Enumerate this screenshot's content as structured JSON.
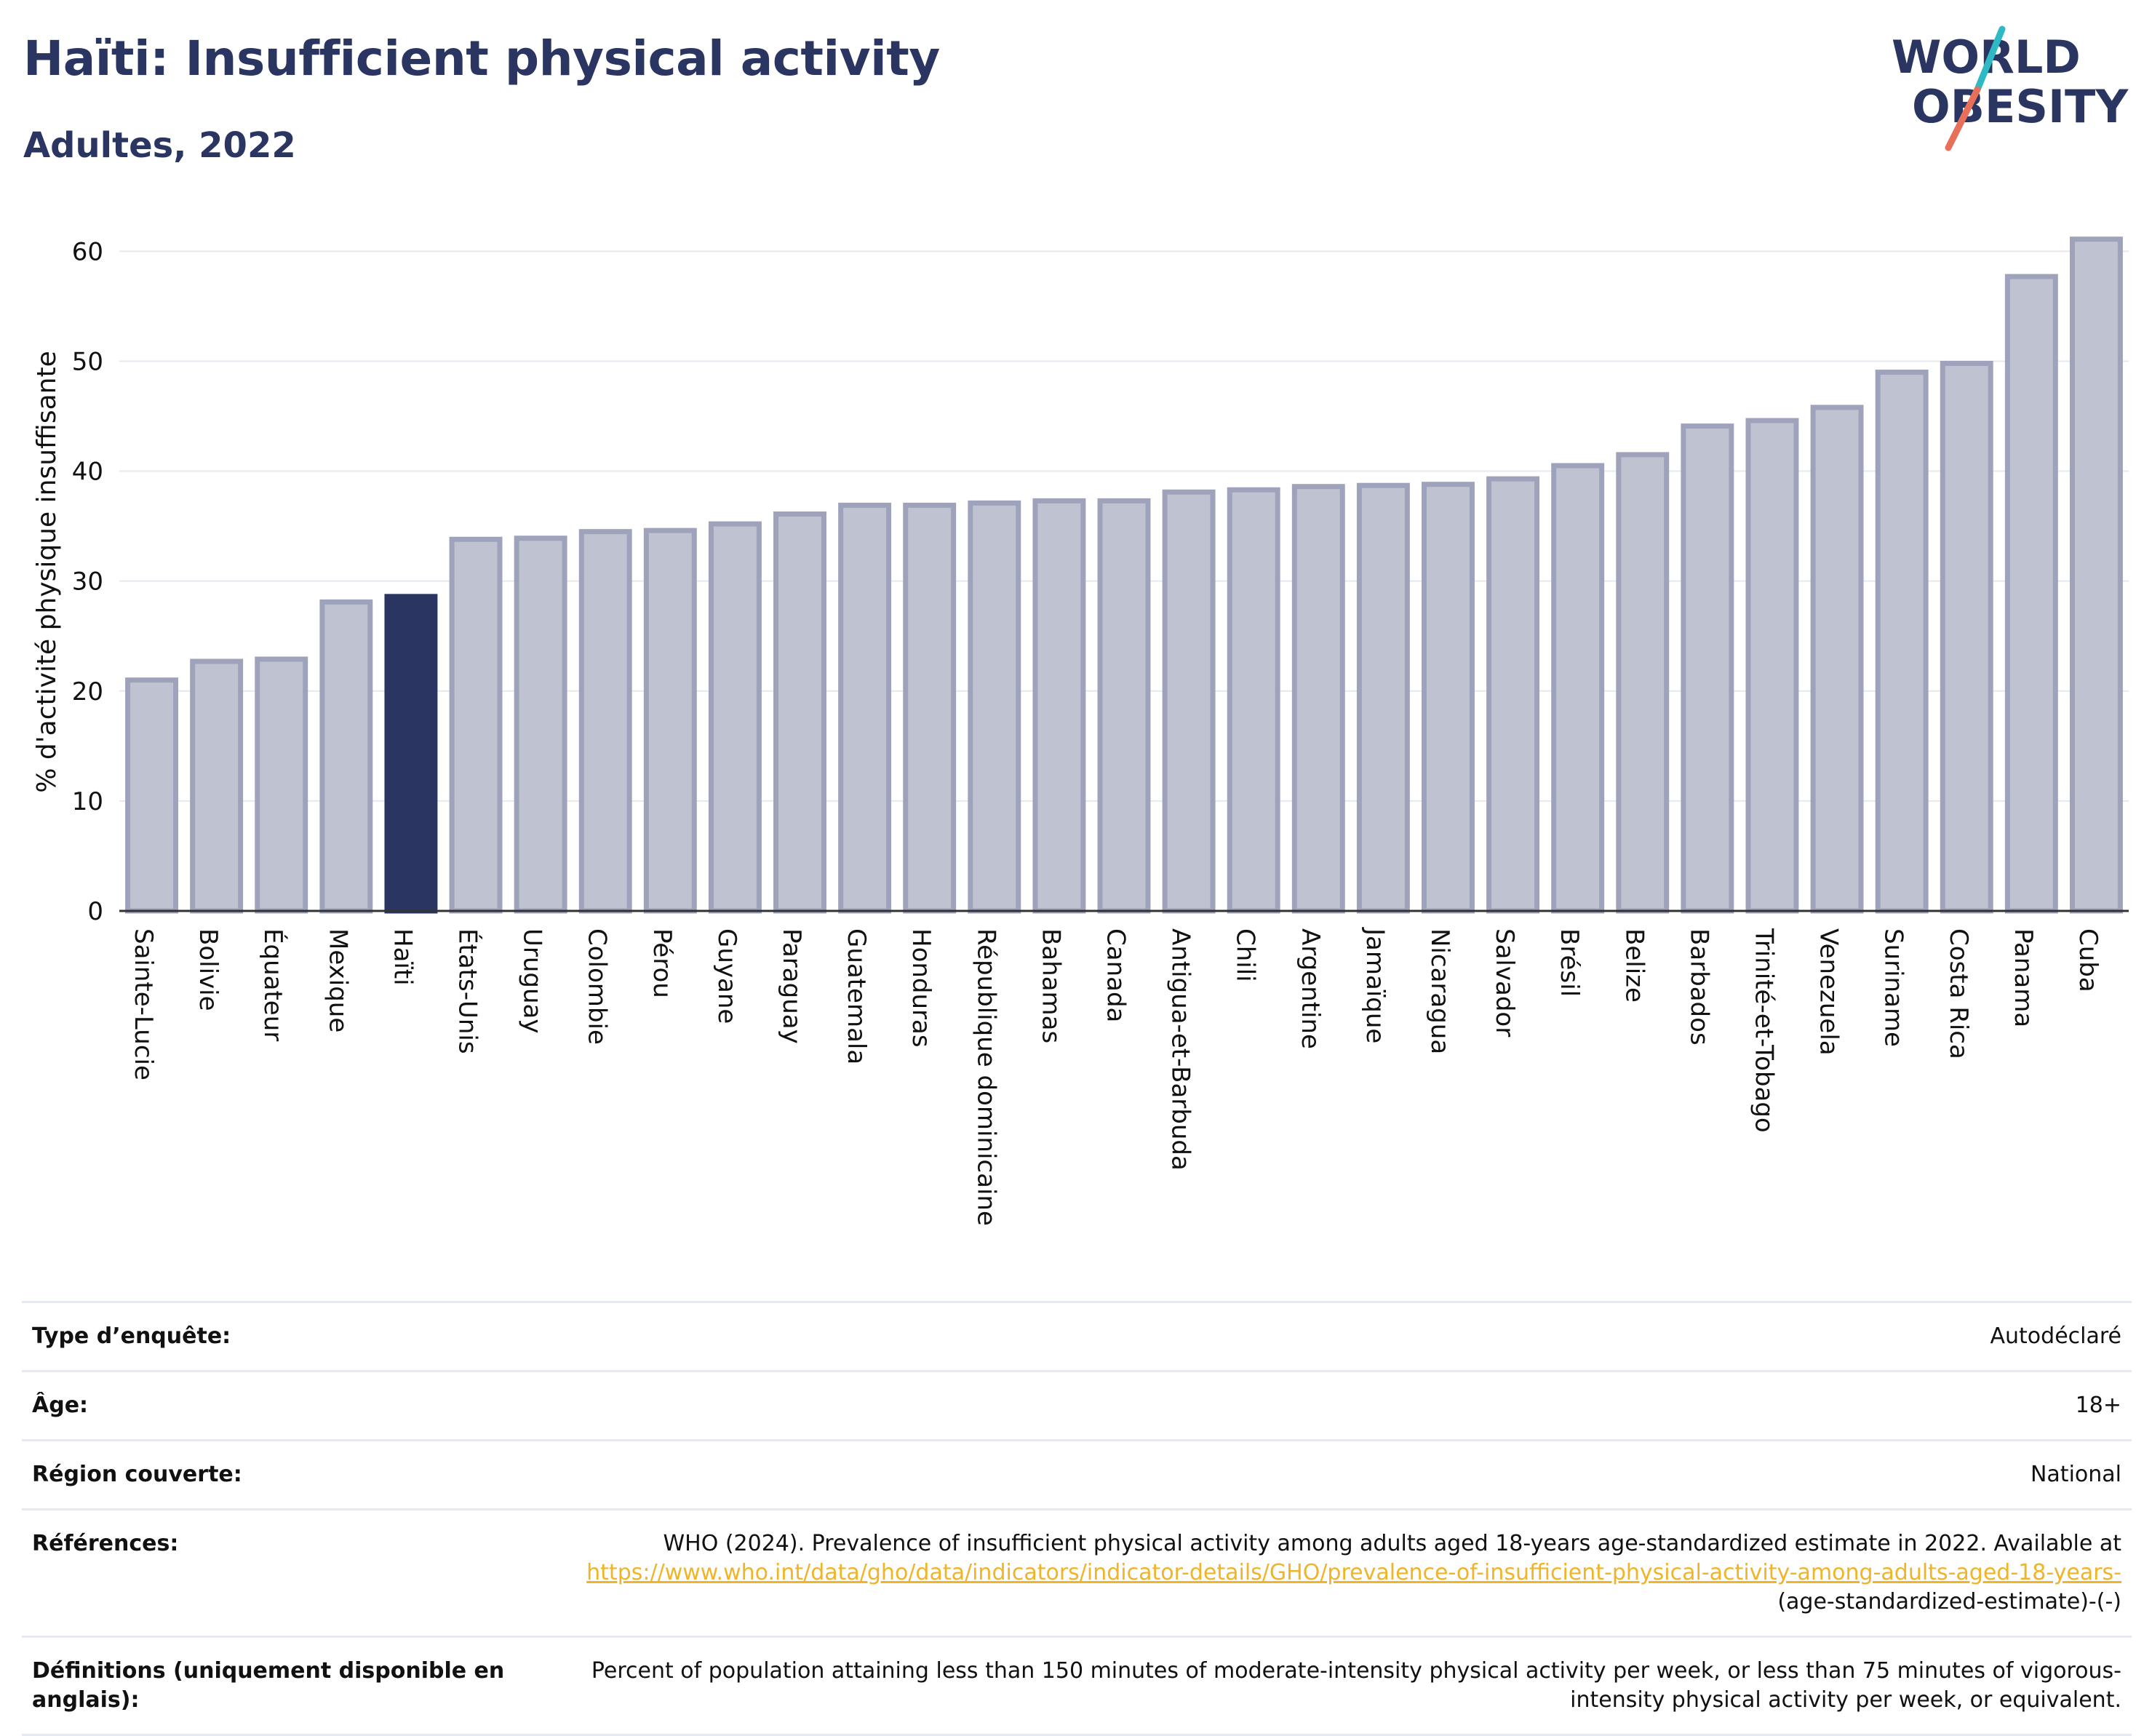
{
  "header": {
    "title": "Haïti: Insufficient physical activity",
    "subtitle": "Adultes, 2022"
  },
  "logo": {
    "line1": "WORLD",
    "line2": "OBESITY",
    "text_color": "#2a3561",
    "slash_colors": [
      "#2fb9c4",
      "#e8705a"
    ]
  },
  "colors": {
    "bar": "#bfc2d0",
    "bar_edge": "#9ea3bb",
    "highlight": "#2a3561",
    "grid": "#e6e8ef",
    "axis": "#333333"
  },
  "chart_data": {
    "type": "bar",
    "ylabel": "% d'activité physique insuffisante",
    "ylim": [
      0,
      63
    ],
    "yticks": [
      0,
      10,
      20,
      30,
      40,
      50,
      60
    ],
    "grid": true,
    "highlight": "Haïti",
    "categories": [
      "Sainte-Lucie",
      "Bolivie",
      "Équateur",
      "Mexique",
      "Haïti",
      "États-Unis",
      "Uruguay",
      "Colombie",
      "Pérou",
      "Guyane",
      "Paraguay",
      "Guatemala",
      "Honduras",
      "République dominicaine",
      "Bahamas",
      "Canada",
      "Antigua-et-Barbuda",
      "Chili",
      "Argentine",
      "Jamaïque",
      "Nicaragua",
      "Salvador",
      "Brésil",
      "Belize",
      "Barbados",
      "Trinité-et-Tobago",
      "Venezuela",
      "Suriname",
      "Costa Rica",
      "Panama",
      "Cuba"
    ],
    "values": [
      21.0,
      22.7,
      22.9,
      28.1,
      28.6,
      33.8,
      33.9,
      34.5,
      34.6,
      35.2,
      36.1,
      36.9,
      36.9,
      37.1,
      37.3,
      37.3,
      38.1,
      38.3,
      38.6,
      38.7,
      38.8,
      39.3,
      40.5,
      41.5,
      44.1,
      44.6,
      45.8,
      49.0,
      49.8,
      57.7,
      61.1
    ]
  },
  "info": [
    {
      "label": "Type d’enquête:",
      "value": "Autodéclaré"
    },
    {
      "label": "Âge:",
      "value": "18+"
    },
    {
      "label": "Région couverte:",
      "value": "National"
    },
    {
      "label": "Références:",
      "value": "WHO (2024). Prevalence of insufficient physical activity among adults aged 18-years age-standardized estimate in 2022. Available at",
      "link": "https://www.who.int/data/gho/data/indicators/indicator-details/GHO/prevalence-of-insufficient-physical-activity-among-adults-aged-18-years-",
      "suffix": "(age-standardized-estimate)-(-)"
    },
    {
      "label": "Définitions (uniquement disponible en anglais):",
      "value": "Percent of population attaining less than 150 minutes of moderate-intensity physical activity per week, or less than 75 minutes of vigorous-intensity physical activity per week, or equivalent."
    }
  ]
}
